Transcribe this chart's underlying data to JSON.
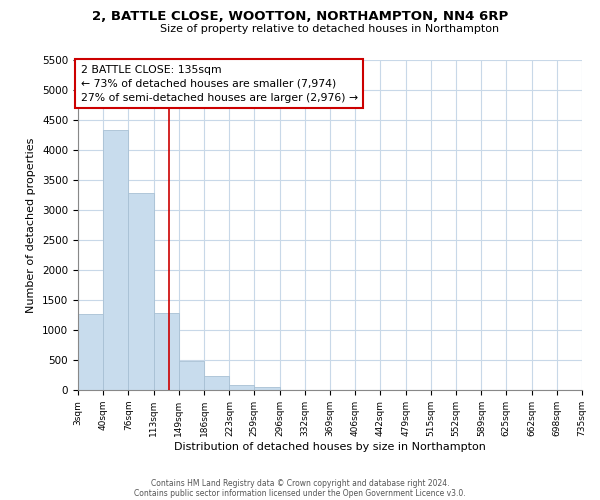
{
  "title": "2, BATTLE CLOSE, WOOTTON, NORTHAMPTON, NN4 6RP",
  "subtitle": "Size of property relative to detached houses in Northampton",
  "xlabel": "Distribution of detached houses by size in Northampton",
  "ylabel": "Number of detached properties",
  "bar_color": "#c8dced",
  "bar_edge_color": "#a8c0d4",
  "marker_line_color": "#cc0000",
  "marker_value": 135,
  "annotation_title": "2 BATTLE CLOSE: 135sqm",
  "annotation_line1": "← 73% of detached houses are smaller (7,974)",
  "annotation_line2": "27% of semi-detached houses are larger (2,976) →",
  "bin_edges": [
    3,
    40,
    76,
    113,
    149,
    186,
    223,
    259,
    296,
    332,
    369,
    406,
    442,
    479,
    515,
    552,
    589,
    625,
    662,
    698,
    735
  ],
  "bar_heights": [
    1270,
    4330,
    3290,
    1280,
    480,
    240,
    90,
    55,
    0,
    0,
    0,
    0,
    0,
    0,
    0,
    0,
    0,
    0,
    0,
    0
  ],
  "ylim": [
    0,
    5500
  ],
  "yticks": [
    0,
    500,
    1000,
    1500,
    2000,
    2500,
    3000,
    3500,
    4000,
    4500,
    5000,
    5500
  ],
  "tick_labels": [
    "3sqm",
    "40sqm",
    "76sqm",
    "113sqm",
    "149sqm",
    "186sqm",
    "223sqm",
    "259sqm",
    "296sqm",
    "332sqm",
    "369sqm",
    "406sqm",
    "442sqm",
    "479sqm",
    "515sqm",
    "552sqm",
    "589sqm",
    "625sqm",
    "662sqm",
    "698sqm",
    "735sqm"
  ],
  "footer1": "Contains HM Land Registry data © Crown copyright and database right 2024.",
  "footer2": "Contains public sector information licensed under the Open Government Licence v3.0.",
  "background_color": "#ffffff",
  "grid_color": "#c8d8e8"
}
